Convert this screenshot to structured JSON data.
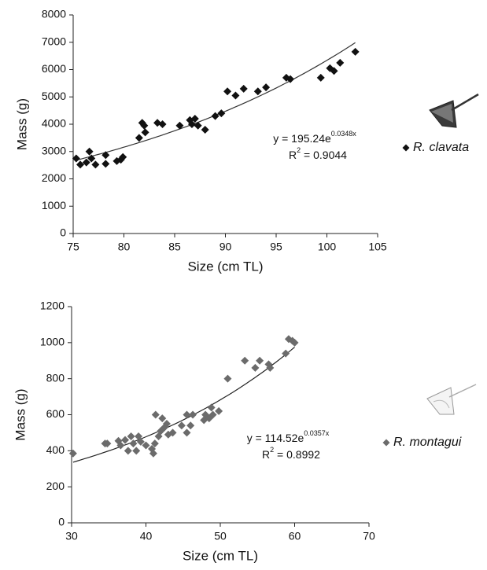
{
  "chart_data": [
    {
      "type": "scatter",
      "xlabel": "Size (cm TL)",
      "ylabel": "Mass (g)",
      "xlim": [
        75,
        105
      ],
      "xticks": [
        75,
        80,
        85,
        90,
        95,
        100,
        105
      ],
      "ylim": [
        0,
        8000
      ],
      "yticks": [
        0,
        1000,
        2000,
        3000,
        4000,
        5000,
        6000,
        7000,
        8000
      ],
      "series": [
        {
          "name": "R. clavata",
          "color": "#111111",
          "x": [
            75.3,
            75.7,
            76.3,
            76.6,
            76.8,
            77.2,
            78.2,
            78.2,
            79.3,
            79.7,
            79.9,
            81.5,
            81.8,
            82.0,
            82.1,
            83.3,
            83.8,
            85.5,
            86.5,
            86.7,
            87.0,
            87.3,
            88.0,
            89.0,
            89.6,
            90.2,
            91.0,
            91.8,
            93.2,
            94.0,
            96.0,
            96.4,
            99.4,
            100.3,
            100.7,
            101.3,
            102.8
          ],
          "values": [
            2750,
            2520,
            2600,
            3000,
            2750,
            2520,
            2550,
            2870,
            2650,
            2700,
            2800,
            3500,
            4050,
            3950,
            3700,
            4050,
            4000,
            3950,
            4150,
            4000,
            4200,
            3950,
            3800,
            4300,
            4400,
            5200,
            5050,
            5300,
            5200,
            5350,
            5700,
            5650,
            5700,
            6050,
            5950,
            6250,
            6650
          ]
        }
      ],
      "trendline": {
        "type": "exponential",
        "a": 195.24,
        "b": 0.0348,
        "color": "#333333"
      },
      "equation": "y = 195.24e",
      "equation_exponent": "0.0348x",
      "r2_label": "R",
      "r2_exponent": "2",
      "r2_value": " = 0.9044"
    },
    {
      "type": "scatter",
      "xlabel": "Size (cm TL)",
      "ylabel": "Mass (g)",
      "xlim": [
        30,
        70
      ],
      "xticks": [
        30,
        40,
        50,
        60,
        70
      ],
      "ylim": [
        0,
        1200
      ],
      "yticks": [
        0,
        200,
        400,
        600,
        800,
        1000,
        1200
      ],
      "series": [
        {
          "name": "R. montagui",
          "color": "#6b6b6b",
          "x": [
            30.2,
            34.5,
            34.8,
            36.3,
            36.6,
            37.2,
            37.6,
            38.0,
            38.3,
            38.7,
            39.0,
            39.3,
            40.0,
            40.8,
            41.0,
            41.2,
            41.3,
            41.7,
            42.0,
            42.2,
            42.5,
            42.8,
            43.0,
            43.6,
            44.8,
            45.5,
            45.5,
            46.0,
            46.3,
            47.8,
            48.0,
            48.5,
            48.8,
            49.0,
            49.8,
            51.0,
            53.3,
            54.7,
            55.3,
            56.5,
            56.7,
            58.8,
            59.2,
            59.7,
            60.0
          ],
          "values": [
            385,
            440,
            440,
            455,
            430,
            460,
            400,
            480,
            440,
            400,
            480,
            450,
            430,
            410,
            385,
            440,
            600,
            480,
            510,
            580,
            530,
            550,
            490,
            500,
            540,
            600,
            500,
            540,
            600,
            570,
            600,
            580,
            640,
            600,
            620,
            800,
            900,
            860,
            900,
            880,
            860,
            940,
            1020,
            1010,
            1000
          ]
        }
      ],
      "trendline": {
        "type": "exponential",
        "a": 114.52,
        "b": 0.0357,
        "color": "#222222"
      },
      "equation": "y = 114.52e",
      "equation_exponent": "0.0357x",
      "r2_label": "R",
      "r2_exponent": "2",
      "r2_value": " = 0.8992"
    }
  ]
}
